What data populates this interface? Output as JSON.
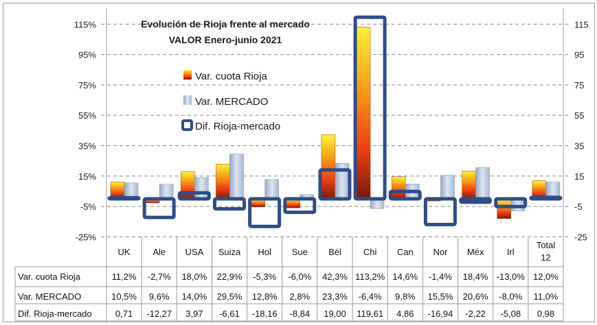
{
  "chart_data": {
    "type": "bar",
    "title": "Evolución de Rioja frente al mercado",
    "subtitle": "VALOR Enero-junio 2021",
    "categories": [
      "UK",
      "Ale",
      "USA",
      "Suiza",
      "Hol",
      "Sue",
      "Bél",
      "Chi",
      "Can",
      "Nor",
      "Méx",
      "Irl",
      "Total 12"
    ],
    "series": [
      {
        "name": "Var. cuota Rioja",
        "values": [
          11.2,
          -2.7,
          18.0,
          22.9,
          -5.3,
          -6.0,
          42.3,
          113.2,
          14.6,
          -1.4,
          18.4,
          -13.0,
          12.0
        ],
        "labels": [
          "11,2%",
          "-2,7%",
          "18,0%",
          "22,9%",
          "-5,3%",
          "-6,0%",
          "42,3%",
          "113,2%",
          "14,6%",
          "-1,4%",
          "18,4%",
          "-13,0%",
          "12,0%"
        ],
        "color": "#F28A10"
      },
      {
        "name": "Var. MERCADO",
        "values": [
          10.5,
          9.6,
          14.0,
          29.5,
          12.8,
          2.8,
          23.3,
          -6.4,
          9.8,
          15.5,
          20.6,
          -8.0,
          11.0
        ],
        "labels": [
          "10,5%",
          "9,6%",
          "14,0%",
          "29,5%",
          "12,8%",
          "2,8%",
          "23,3%",
          "-6,4%",
          "9,8%",
          "15,5%",
          "20,6%",
          "-8,0%",
          "11,0%"
        ],
        "color": "#C5D2E6"
      },
      {
        "name": "Dif. Rioja-mercado",
        "values": [
          0.71,
          -12.27,
          3.97,
          -6.61,
          -18.16,
          -8.84,
          19.0,
          119.61,
          4.86,
          -16.94,
          -2.22,
          -5.08,
          0.98
        ],
        "labels": [
          "0,71",
          "-12,27",
          "3,97",
          "-6,61",
          "-18,16",
          "-8,84",
          "19,00",
          "119,61",
          "4,86",
          "-16,94",
          "-2,22",
          "-5,08",
          "0,98"
        ],
        "color": "#2E4C88"
      }
    ],
    "y_left_ticks": [
      "115%",
      "95%",
      "75%",
      "55%",
      "35%",
      "15%",
      "-5%",
      "-25%"
    ],
    "y_right_ticks": [
      "115",
      "95",
      "75",
      "55",
      "35",
      "15",
      "-5",
      "-25"
    ],
    "tick_values": [
      115,
      95,
      75,
      55,
      35,
      15,
      -5,
      -25
    ],
    "ylim": [
      -25,
      115
    ],
    "grid": true,
    "legend_position": "top-left"
  }
}
